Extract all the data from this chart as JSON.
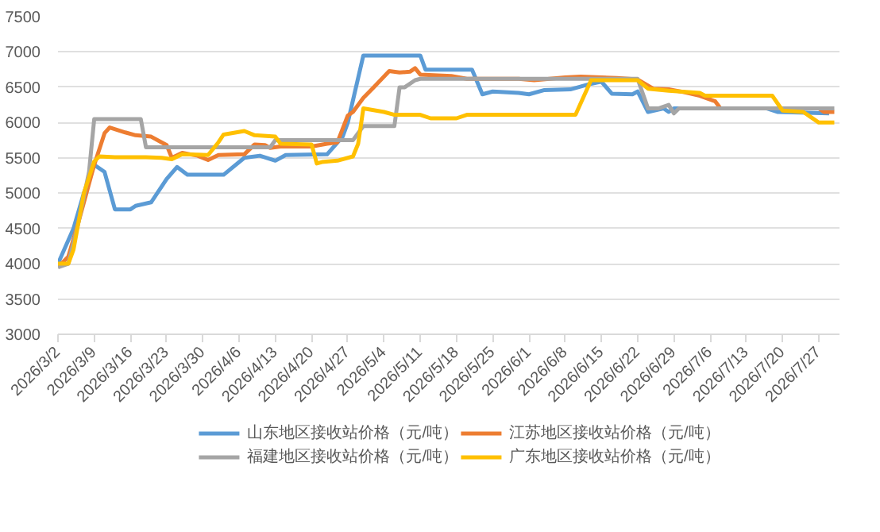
{
  "chart_data": {
    "type": "line",
    "grid": "y",
    "legend": "bottom",
    "marker": "none",
    "line_style": "solid",
    "xlim": [
      "2026-03-02",
      "2026-07-31"
    ],
    "ylim": [
      3000,
      7500
    ],
    "yticks": [
      3000,
      3500,
      4000,
      4500,
      5000,
      5500,
      6000,
      6500,
      7000,
      7500
    ],
    "xticks": [
      {
        "value": "2026-03-02",
        "label": "2026/3/2"
      },
      {
        "value": "2026-03-09",
        "label": "2026/3/9"
      },
      {
        "value": "2026-03-16",
        "label": "2026/3/16"
      },
      {
        "value": "2026-03-23",
        "label": "2026/3/23"
      },
      {
        "value": "2026-03-30",
        "label": "2026/3/30"
      },
      {
        "value": "2026-04-06",
        "label": "2026/4/6"
      },
      {
        "value": "2026-04-13",
        "label": "2026/4/13"
      },
      {
        "value": "2026-04-20",
        "label": "2026/4/20"
      },
      {
        "value": "2026-04-27",
        "label": "2026/4/27"
      },
      {
        "value": "2026-05-04",
        "label": "2026/5/4"
      },
      {
        "value": "2026-05-11",
        "label": "2026/5/11"
      },
      {
        "value": "2026-05-18",
        "label": "2026/5/18"
      },
      {
        "value": "2026-05-25",
        "label": "2026/5/25"
      },
      {
        "value": "2026-06-01",
        "label": "2026/6/1"
      },
      {
        "value": "2026-06-08",
        "label": "2026/6/8"
      },
      {
        "value": "2026-06-15",
        "label": "2026/6/15"
      },
      {
        "value": "2026-06-22",
        "label": "2026/6/22"
      },
      {
        "value": "2026-06-29",
        "label": "2026/6/29"
      },
      {
        "value": "2026-07-06",
        "label": "2026/7/6"
      },
      {
        "value": "2026-07-13",
        "label": "2026/7/13"
      },
      {
        "value": "2026-07-20",
        "label": "2026/7/20"
      },
      {
        "value": "2026-07-27",
        "label": "2026/7/27"
      }
    ],
    "series": [
      {
        "name": "山东地区接收站价格（元/吨）",
        "color": "#5b9bd5",
        "x": [
          "2026-03-02",
          "2026-03-05",
          "2026-03-07",
          "2026-03-09",
          "2026-03-11",
          "2026-03-13",
          "2026-03-16",
          "2026-03-17",
          "2026-03-20",
          "2026-03-23",
          "2026-03-25",
          "2026-03-27",
          "2026-04-03",
          "2026-04-07",
          "2026-04-10",
          "2026-04-13",
          "2026-04-15",
          "2026-04-23",
          "2026-04-26",
          "2026-04-27",
          "2026-04-30",
          "2026-05-11",
          "2026-05-12",
          "2026-05-21",
          "2026-05-23",
          "2026-05-25",
          "2026-05-30",
          "2026-06-01",
          "2026-06-04",
          "2026-06-09",
          "2026-06-13",
          "2026-06-15",
          "2026-06-17",
          "2026-06-21",
          "2026-06-22",
          "2026-06-24",
          "2026-06-27",
          "2026-06-28",
          "2026-06-29",
          "2026-07-17",
          "2026-07-19",
          "2026-07-29"
        ],
        "values": [
          4000,
          4500,
          5000,
          5400,
          5300,
          4770,
          4770,
          4820,
          4870,
          5200,
          5370,
          5260,
          5260,
          5500,
          5530,
          5460,
          5540,
          5550,
          5800,
          6000,
          6950,
          6950,
          6750,
          6750,
          6400,
          6440,
          6420,
          6400,
          6460,
          6470,
          6550,
          6580,
          6410,
          6400,
          6440,
          6150,
          6200,
          6150,
          6200,
          6200,
          6150,
          6130
        ]
      },
      {
        "name": "江苏地区接收站价格（元/吨）",
        "color": "#ed7d31",
        "x": [
          "2026-03-02",
          "2026-03-04",
          "2026-03-06",
          "2026-03-09",
          "2026-03-11",
          "2026-03-12",
          "2026-03-15",
          "2026-03-17",
          "2026-03-20",
          "2026-03-22",
          "2026-03-23",
          "2026-03-24",
          "2026-03-26",
          "2026-03-29",
          "2026-03-31",
          "2026-04-02",
          "2026-04-07",
          "2026-04-09",
          "2026-04-11",
          "2026-04-12",
          "2026-04-14",
          "2026-04-20",
          "2026-04-23",
          "2026-04-25",
          "2026-04-27",
          "2026-04-28",
          "2026-04-30",
          "2026-05-02",
          "2026-05-05",
          "2026-05-07",
          "2026-05-09",
          "2026-05-10",
          "2026-05-11",
          "2026-05-17",
          "2026-05-20",
          "2026-05-30",
          "2026-06-02",
          "2026-06-08",
          "2026-06-11",
          "2026-06-18",
          "2026-06-22",
          "2026-06-25",
          "2026-06-28",
          "2026-07-01",
          "2026-07-04",
          "2026-07-07",
          "2026-07-08",
          "2026-07-20",
          "2026-07-27",
          "2026-07-28",
          "2026-07-30"
        ],
        "values": [
          3950,
          4100,
          4600,
          5400,
          5850,
          5930,
          5860,
          5820,
          5800,
          5720,
          5680,
          5500,
          5570,
          5530,
          5470,
          5540,
          5550,
          5690,
          5680,
          5640,
          5660,
          5660,
          5700,
          5720,
          6100,
          6150,
          6350,
          6500,
          6730,
          6710,
          6720,
          6770,
          6680,
          6660,
          6620,
          6620,
          6600,
          6640,
          6650,
          6630,
          6610,
          6480,
          6470,
          6430,
          6380,
          6300,
          6200,
          6200,
          6200,
          6150,
          6150
        ]
      },
      {
        "name": "福建地区接收站价格（元/吨）",
        "color": "#a5a5a5",
        "x": [
          "2026-03-02",
          "2026-03-04",
          "2026-03-06",
          "2026-03-08",
          "2026-03-09",
          "2026-03-18",
          "2026-03-19",
          "2026-04-12",
          "2026-04-13",
          "2026-04-28",
          "2026-04-30",
          "2026-05-06",
          "2026-05-07",
          "2026-05-08",
          "2026-05-10",
          "2026-05-11",
          "2026-06-22",
          "2026-06-24",
          "2026-06-26",
          "2026-06-28",
          "2026-06-29",
          "2026-06-30",
          "2026-07-30"
        ],
        "values": [
          3950,
          4000,
          4600,
          5300,
          6050,
          6050,
          5650,
          5650,
          5750,
          5750,
          5950,
          5950,
          6500,
          6500,
          6600,
          6620,
          6620,
          6200,
          6200,
          6250,
          6130,
          6200,
          6200
        ]
      },
      {
        "name": "广东地区接收站价格（元/吨）",
        "color": "#ffc000",
        "x": [
          "2026-03-02",
          "2026-03-04",
          "2026-03-05",
          "2026-03-07",
          "2026-03-09",
          "2026-03-10",
          "2026-03-13",
          "2026-03-19",
          "2026-03-22",
          "2026-03-24",
          "2026-03-26",
          "2026-03-31",
          "2026-04-02",
          "2026-04-03",
          "2026-04-07",
          "2026-04-09",
          "2026-04-13",
          "2026-04-14",
          "2026-04-20",
          "2026-04-21",
          "2026-04-22",
          "2026-04-25",
          "2026-04-28",
          "2026-04-29",
          "2026-04-30",
          "2026-05-04",
          "2026-05-06",
          "2026-05-11",
          "2026-05-13",
          "2026-05-18",
          "2026-05-20",
          "2026-06-10",
          "2026-06-13",
          "2026-06-22",
          "2026-06-24",
          "2026-06-28",
          "2026-07-04",
          "2026-07-05",
          "2026-07-18",
          "2026-07-20",
          "2026-07-24",
          "2026-07-26",
          "2026-07-27",
          "2026-07-30"
        ],
        "values": [
          4000,
          4000,
          4200,
          5000,
          5450,
          5520,
          5510,
          5510,
          5500,
          5480,
          5550,
          5540,
          5720,
          5830,
          5880,
          5820,
          5800,
          5700,
          5690,
          5420,
          5440,
          5460,
          5520,
          5700,
          6200,
          6150,
          6110,
          6110,
          6060,
          6060,
          6110,
          6110,
          6600,
          6600,
          6480,
          6450,
          6420,
          6380,
          6380,
          6170,
          6150,
          6050,
          6000,
          6000
        ]
      }
    ]
  }
}
